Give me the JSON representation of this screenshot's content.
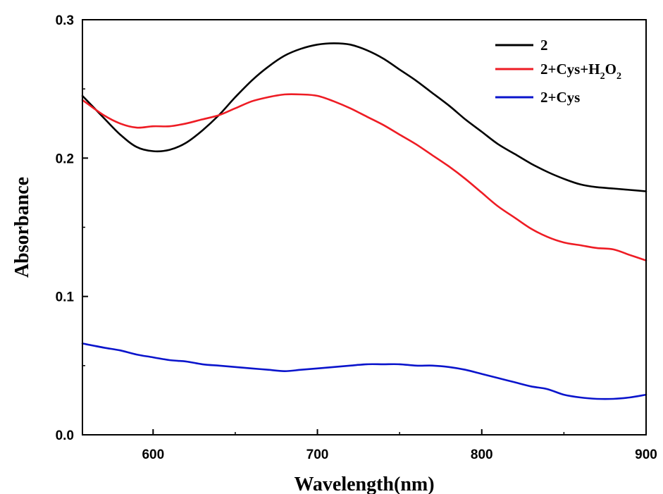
{
  "chart_data": {
    "type": "line",
    "xlabel": "Wavelength(nm)",
    "ylabel": "Absorbance",
    "xlim": [
      557,
      900
    ],
    "ylim": [
      0.0,
      0.3
    ],
    "xticks": [
      600,
      700,
      800,
      900
    ],
    "xtick_labels": [
      "600",
      "700",
      "800",
      "900"
    ],
    "yticks": [
      0.0,
      0.1,
      0.2,
      0.3
    ],
    "ytick_labels": [
      "0.0",
      "0.1",
      "0.2",
      "0.3"
    ],
    "grid": false,
    "legend_position": "top-right",
    "series": [
      {
        "name": "2",
        "color": "#000000",
        "x": [
          557,
          570,
          580,
          590,
          600,
          610,
          620,
          630,
          640,
          650,
          660,
          670,
          680,
          690,
          700,
          710,
          720,
          730,
          740,
          750,
          760,
          770,
          780,
          790,
          800,
          810,
          820,
          830,
          840,
          850,
          860,
          870,
          880,
          890,
          900
        ],
        "y": [
          0.245,
          0.229,
          0.217,
          0.208,
          0.205,
          0.206,
          0.211,
          0.22,
          0.231,
          0.244,
          0.256,
          0.266,
          0.274,
          0.279,
          0.282,
          0.283,
          0.282,
          0.278,
          0.272,
          0.264,
          0.256,
          0.247,
          0.238,
          0.228,
          0.219,
          0.21,
          0.203,
          0.196,
          0.19,
          0.185,
          0.181,
          0.179,
          0.178,
          0.177,
          0.176
        ]
      },
      {
        "name_parts": [
          "2+Cys+H",
          "2",
          "O",
          "2"
        ],
        "color": "#ee1c24",
        "x": [
          557,
          570,
          580,
          590,
          600,
          610,
          620,
          630,
          640,
          650,
          660,
          670,
          680,
          690,
          700,
          710,
          720,
          730,
          740,
          750,
          760,
          770,
          780,
          790,
          800,
          810,
          820,
          830,
          840,
          850,
          860,
          870,
          880,
          890,
          900
        ],
        "y": [
          0.242,
          0.231,
          0.225,
          0.222,
          0.223,
          0.223,
          0.225,
          0.228,
          0.231,
          0.236,
          0.241,
          0.244,
          0.246,
          0.246,
          0.245,
          0.241,
          0.236,
          0.23,
          0.224,
          0.217,
          0.21,
          0.202,
          0.194,
          0.185,
          0.175,
          0.165,
          0.157,
          0.149,
          0.143,
          0.139,
          0.137,
          0.135,
          0.134,
          0.13,
          0.126
        ]
      },
      {
        "name": "2+Cys",
        "color": "#0a14cc",
        "x": [
          557,
          570,
          580,
          590,
          600,
          610,
          620,
          630,
          640,
          650,
          660,
          670,
          680,
          690,
          700,
          710,
          720,
          730,
          740,
          750,
          760,
          770,
          780,
          790,
          800,
          810,
          820,
          830,
          840,
          850,
          860,
          870,
          880,
          890,
          900
        ],
        "y": [
          0.066,
          0.063,
          0.061,
          0.058,
          0.056,
          0.054,
          0.053,
          0.051,
          0.05,
          0.049,
          0.048,
          0.047,
          0.046,
          0.047,
          0.048,
          0.049,
          0.05,
          0.051,
          0.051,
          0.051,
          0.05,
          0.05,
          0.049,
          0.047,
          0.044,
          0.041,
          0.038,
          0.035,
          0.033,
          0.029,
          0.027,
          0.026,
          0.026,
          0.027,
          0.029
        ]
      }
    ]
  }
}
